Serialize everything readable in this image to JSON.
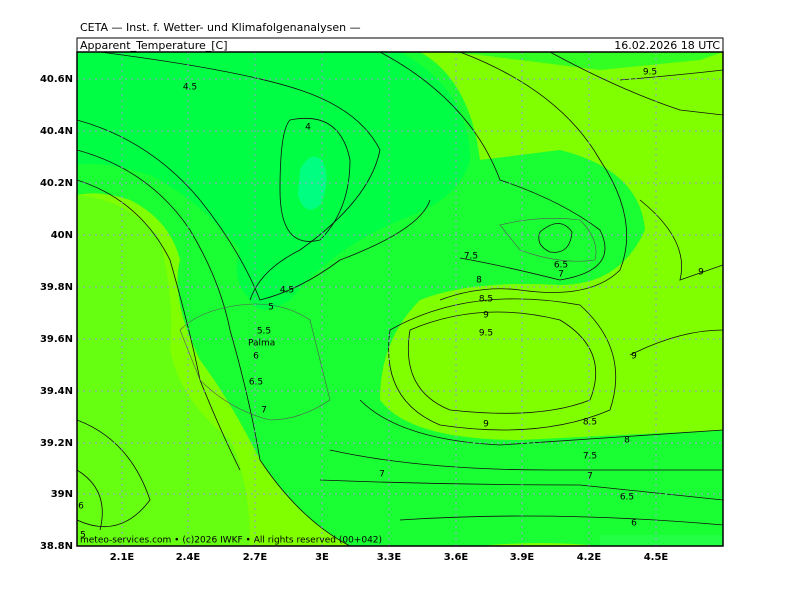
{
  "header": "CETA — Inst. f. Wetter- und Klimafolgenanalysen —",
  "title": "Apparent_Temperature_[C]",
  "date": "16.02.2026 18 UTC",
  "y_labels": [
    "40.6N",
    "40.4N",
    "40.2N",
    "40N",
    "39.8N",
    "39.6N",
    "39.4N",
    "39.2N",
    "39N",
    "38.8N"
  ],
  "x_labels": [
    "2.1E",
    "2.4E",
    "2.7E",
    "3E",
    "3.3E",
    "3.6E",
    "3.9E",
    "4.2E",
    "4.5E"
  ],
  "contour_labels": [
    "4.5",
    "4",
    "9.5",
    "9",
    "7.5",
    "6.5",
    "7",
    "8",
    "8.5",
    "9",
    "9.5",
    "4.5",
    "5",
    "5.5",
    "6",
    "6.5",
    "7",
    "9",
    "9",
    "8.5",
    "8",
    "7.5",
    "7",
    "7",
    "6.5",
    "6",
    "6",
    "5"
  ],
  "place": "Palma",
  "footer": "meteo-services.com • (c)2026 IWKF • All rights reserved (00+042)"
}
